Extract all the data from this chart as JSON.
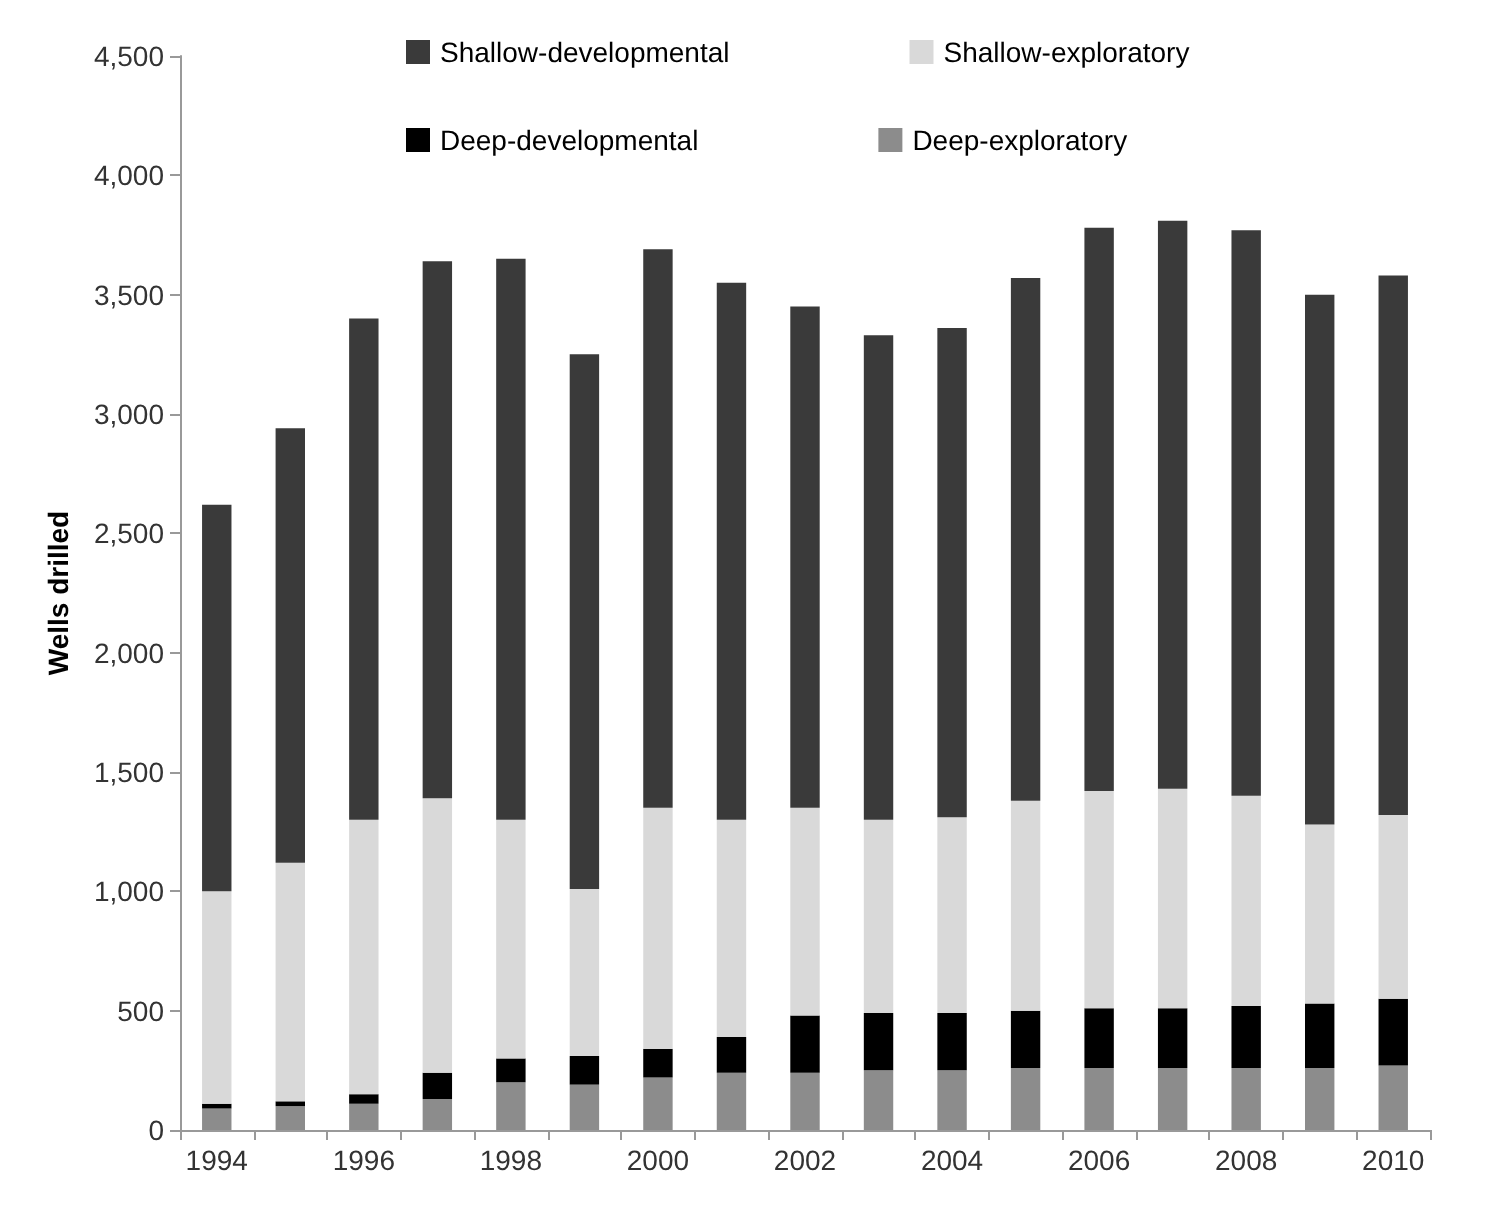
{
  "chart_data": {
    "type": "bar",
    "stacked": true,
    "ylabel": "Wells drilled",
    "categories": [
      "1994",
      null,
      "1996",
      null,
      "1998",
      null,
      "2000",
      null,
      "2002",
      null,
      "2004",
      null,
      "2006",
      null,
      "2008",
      null,
      "2010"
    ],
    "series": [
      {
        "name": "Deep-exploratory",
        "color": "#8c8c8c",
        "values": [
          90,
          100,
          110,
          130,
          200,
          190,
          220,
          240,
          240,
          250,
          250,
          260,
          260,
          260,
          260,
          260,
          270
        ]
      },
      {
        "name": "Deep-developmental",
        "color": "#000000",
        "values": [
          20,
          20,
          40,
          110,
          100,
          120,
          120,
          150,
          240,
          240,
          240,
          240,
          250,
          250,
          260,
          270,
          280
        ]
      },
      {
        "name": "Shallow-exploratory",
        "color": "#d9d9d9",
        "values": [
          890,
          1000,
          1150,
          1150,
          1000,
          700,
          1010,
          910,
          870,
          810,
          820,
          880,
          910,
          920,
          880,
          750,
          770
        ]
      },
      {
        "name": "Shallow-developmental",
        "color": "#3a3a3a",
        "values": [
          1620,
          1820,
          2100,
          2250,
          2350,
          2240,
          2340,
          2250,
          2100,
          2030,
          2050,
          2190,
          2360,
          2380,
          2370,
          2220,
          2260
        ]
      }
    ],
    "ylim": [
      0,
      4500
    ],
    "yticks": [
      {
        "value": 0,
        "label": "0"
      },
      {
        "value": 500,
        "label": "500"
      },
      {
        "value": 1000,
        "label": "1,000"
      },
      {
        "value": 1500,
        "label": "1,500"
      },
      {
        "value": 2000,
        "label": "2,000"
      },
      {
        "value": 2500,
        "label": "2,500"
      },
      {
        "value": 3000,
        "label": "3,000"
      },
      {
        "value": 3500,
        "label": "3,500"
      },
      {
        "value": 4000,
        "label": "4,000"
      },
      {
        "value": 4500,
        "label": "4,500"
      }
    ],
    "grid": false,
    "legend": "top"
  }
}
